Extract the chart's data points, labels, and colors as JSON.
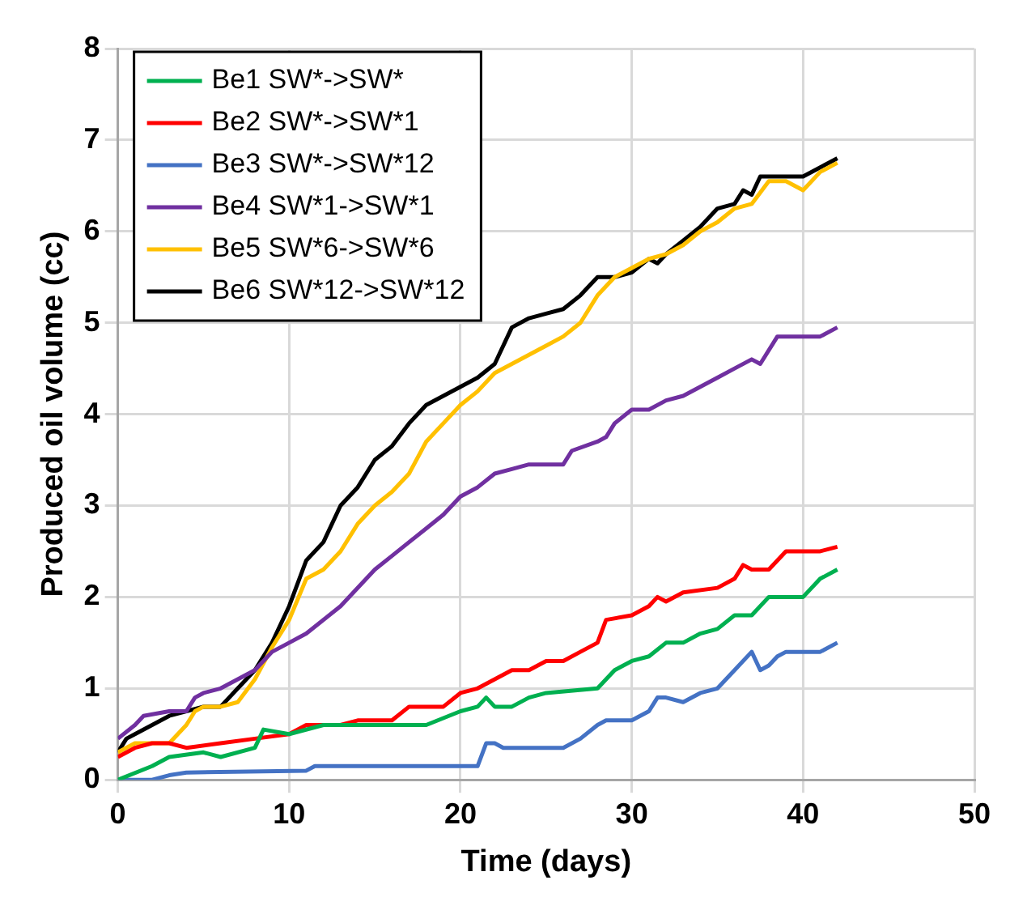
{
  "chart_data": {
    "type": "line",
    "xlabel": "Time (days)",
    "ylabel": "Produced oil volume (cc)",
    "xlim": [
      0,
      50
    ],
    "xticks": [
      0,
      10,
      20,
      30,
      40,
      50
    ],
    "ylim": [
      0,
      8
    ],
    "yticks": [
      0,
      1,
      2,
      3,
      4,
      5,
      6,
      7,
      8
    ],
    "grid": true,
    "legend": "top left",
    "marker": "none",
    "line_style": "solid",
    "series": [
      {
        "name": "Be1 SW*->SW*",
        "color": "#00b050",
        "x": [
          0,
          2,
          3,
          5,
          6,
          8,
          8.5,
          10,
          12,
          18,
          20,
          21,
          21.5,
          22,
          23,
          24,
          25,
          28,
          29,
          30,
          31,
          32,
          33,
          34,
          35,
          36,
          37,
          38,
          40,
          41,
          42
        ],
        "values": [
          0,
          0.15,
          0.25,
          0.3,
          0.25,
          0.35,
          0.55,
          0.5,
          0.6,
          0.6,
          0.75,
          0.8,
          0.9,
          0.8,
          0.8,
          0.9,
          0.95,
          1.0,
          1.2,
          1.3,
          1.35,
          1.5,
          1.5,
          1.6,
          1.65,
          1.8,
          1.8,
          2.0,
          2.0,
          2.2,
          2.3
        ]
      },
      {
        "name": "Be2 SW*->SW*1",
        "color": "#ff0000",
        "x": [
          0,
          1,
          2,
          3,
          4,
          6,
          8,
          10,
          11,
          13,
          14,
          16,
          17,
          19,
          20,
          21,
          22,
          23,
          24,
          25,
          26,
          27,
          28,
          28.5,
          30,
          31,
          31.5,
          32,
          33,
          35,
          36,
          36.5,
          37,
          38,
          38.5,
          39,
          41,
          42
        ],
        "values": [
          0.25,
          0.35,
          0.4,
          0.4,
          0.35,
          0.4,
          0.45,
          0.5,
          0.6,
          0.6,
          0.65,
          0.65,
          0.8,
          0.8,
          0.95,
          1.0,
          1.1,
          1.2,
          1.2,
          1.3,
          1.3,
          1.4,
          1.5,
          1.75,
          1.8,
          1.9,
          2.0,
          1.95,
          2.05,
          2.1,
          2.2,
          2.35,
          2.3,
          2.3,
          2.4,
          2.5,
          2.5,
          2.55
        ]
      },
      {
        "name": "Be3 SW*->SW*12",
        "color": "#4472c4",
        "x": [
          0,
          2,
          3,
          4,
          11,
          11.5,
          21,
          21.5,
          22,
          22.5,
          26,
          27,
          28,
          28.5,
          30,
          31,
          31.5,
          32,
          33,
          34,
          35,
          36,
          37,
          37.5,
          38,
          38.5,
          39,
          41,
          42
        ],
        "values": [
          0,
          0,
          0.05,
          0.08,
          0.1,
          0.15,
          0.15,
          0.4,
          0.4,
          0.35,
          0.35,
          0.45,
          0.6,
          0.65,
          0.65,
          0.75,
          0.9,
          0.9,
          0.85,
          0.95,
          1.0,
          1.2,
          1.4,
          1.2,
          1.25,
          1.35,
          1.4,
          1.4,
          1.5
        ]
      },
      {
        "name": "Be4 SW*1->SW*1",
        "color": "#7030a0",
        "x": [
          0,
          1,
          1.5,
          3,
          4,
          4.5,
          5,
          6,
          7,
          8,
          9,
          10,
          11,
          13,
          15,
          16,
          17,
          18,
          19,
          20,
          21,
          22,
          23,
          24,
          26,
          26.5,
          28,
          28.5,
          29,
          30,
          31,
          32,
          33,
          34,
          35,
          36,
          37,
          37.5,
          38.5,
          41,
          42
        ],
        "values": [
          0.45,
          0.6,
          0.7,
          0.75,
          0.75,
          0.9,
          0.95,
          1.0,
          1.1,
          1.2,
          1.4,
          1.5,
          1.6,
          1.9,
          2.3,
          2.45,
          2.6,
          2.75,
          2.9,
          3.1,
          3.2,
          3.35,
          3.4,
          3.45,
          3.45,
          3.6,
          3.7,
          3.75,
          3.9,
          4.05,
          4.05,
          4.15,
          4.2,
          4.3,
          4.4,
          4.5,
          4.6,
          4.55,
          4.85,
          4.85,
          4.95
        ]
      },
      {
        "name": "Be5 SW*6->SW*6",
        "color": "#ffc000",
        "x": [
          0,
          1,
          3,
          3.5,
          4,
          4.5,
          5,
          6,
          7,
          8,
          9,
          10,
          11,
          12,
          13,
          14,
          15,
          16,
          17,
          18,
          19,
          20,
          21,
          22,
          23,
          24,
          25,
          26,
          27,
          28,
          29,
          30,
          31,
          32,
          33,
          34,
          35,
          36,
          37,
          38,
          39,
          40,
          41,
          42
        ],
        "values": [
          0.3,
          0.4,
          0.4,
          0.5,
          0.6,
          0.75,
          0.8,
          0.8,
          0.85,
          1.1,
          1.45,
          1.75,
          2.2,
          2.3,
          2.5,
          2.8,
          3.0,
          3.15,
          3.35,
          3.7,
          3.9,
          4.1,
          4.25,
          4.45,
          4.55,
          4.65,
          4.75,
          4.85,
          5.0,
          5.3,
          5.5,
          5.6,
          5.7,
          5.75,
          5.85,
          6.0,
          6.1,
          6.25,
          6.3,
          6.55,
          6.55,
          6.45,
          6.65,
          6.75
        ]
      },
      {
        "name": "Be6 SW*12->SW*12",
        "color": "#000000",
        "x": [
          0,
          0.5,
          1,
          2,
          3,
          4,
          5,
          6,
          7,
          8,
          9,
          10,
          11,
          12,
          13,
          14,
          15,
          16,
          17,
          18,
          19,
          20,
          21,
          22,
          23,
          24,
          25,
          26,
          27,
          28,
          29,
          30,
          31,
          31.5,
          32,
          33,
          34,
          35,
          36,
          36.5,
          37,
          37.5,
          40,
          42
        ],
        "values": [
          0.3,
          0.45,
          0.5,
          0.6,
          0.7,
          0.75,
          0.8,
          0.8,
          1.0,
          1.2,
          1.5,
          1.9,
          2.4,
          2.6,
          3.0,
          3.2,
          3.5,
          3.65,
          3.9,
          4.1,
          4.2,
          4.3,
          4.4,
          4.55,
          4.95,
          5.05,
          5.1,
          5.15,
          5.3,
          5.5,
          5.5,
          5.55,
          5.7,
          5.65,
          5.75,
          5.9,
          6.05,
          6.25,
          6.3,
          6.45,
          6.4,
          6.6,
          6.6,
          6.8
        ]
      }
    ]
  }
}
